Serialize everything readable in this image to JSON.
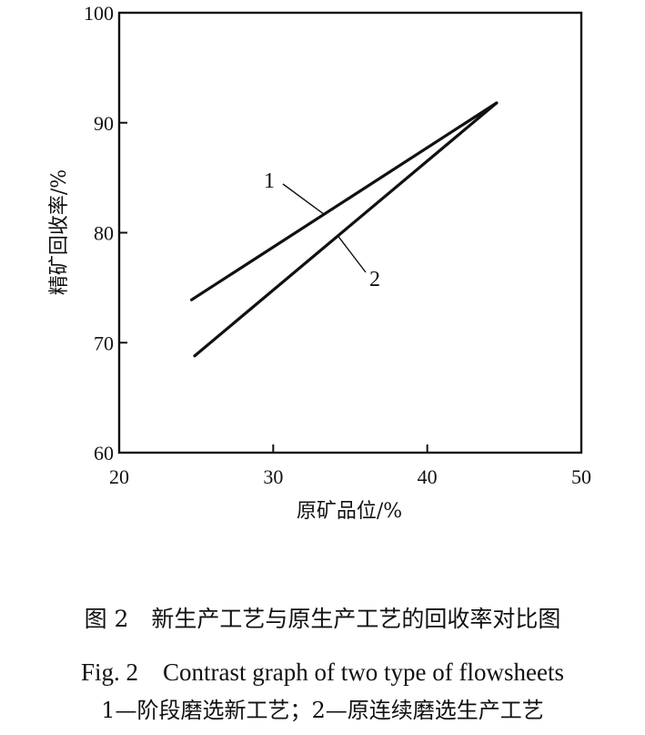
{
  "chart_data": {
    "type": "line",
    "xlabel": "原矿品位/%",
    "ylabel": "精矿回收率/%",
    "xlim": [
      20,
      50
    ],
    "ylim": [
      60,
      100
    ],
    "xticks": [
      20,
      30,
      40,
      50
    ],
    "yticks": [
      60,
      70,
      80,
      90,
      100
    ],
    "grid": false,
    "series": [
      {
        "name": "1",
        "x": [
          24.7,
          44.5
        ],
        "y": [
          73.9,
          91.8
        ]
      },
      {
        "name": "2",
        "x": [
          24.9,
          44.5
        ],
        "y": [
          68.8,
          91.8
        ]
      }
    ]
  },
  "caption": {
    "zh": "图 2　新生产工艺与原生产工艺的回收率对比图",
    "en": "Fig. 2　Contrast graph of two type of flowsheets",
    "legend": "1—阶段磨选新工艺；2—原连续磨选生产工艺"
  },
  "colors": {
    "line": "#111111",
    "axis": "#111111",
    "background": "#ffffff"
  }
}
